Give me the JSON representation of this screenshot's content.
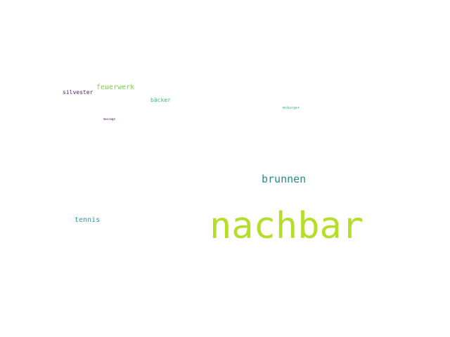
{
  "word_cloud": {
    "background": "#ffffff",
    "words": [
      {
        "text": "nachbar",
        "color": "#b5de2b"
      },
      {
        "text": "brunnen",
        "color": "#2a8a8c"
      },
      {
        "text": "tennis",
        "color": "#2a9b9a"
      },
      {
        "text": "feuerwerk",
        "color": "#7ad151"
      },
      {
        "text": "silvester",
        "color": "#482878"
      },
      {
        "text": "bäcker",
        "color": "#3dbc74"
      },
      {
        "text": "mcburger",
        "color": "#35b779"
      },
      {
        "text": "message",
        "color": "#440154"
      }
    ]
  }
}
